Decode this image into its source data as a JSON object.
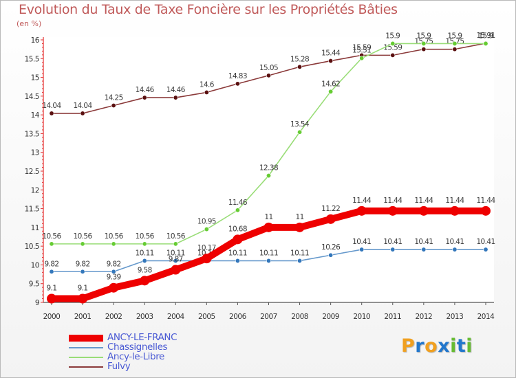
{
  "title": "Evolution du Taux de Taxe Foncière sur les Propriétés Bâties",
  "subtitle": "(en %)",
  "chart_data": {
    "type": "line",
    "title": "Evolution du Taux de Taxe Foncière sur les Propriétés Bâties",
    "ylabel": "(en %)",
    "xlabel": "",
    "ylim": [
      9,
      16
    ],
    "grid": false,
    "legend_position": "bottom-left",
    "x": [
      2000,
      2001,
      2002,
      2003,
      2004,
      2005,
      2006,
      2007,
      2008,
      2009,
      2010,
      2011,
      2012,
      2013,
      2014
    ],
    "x_ticks": [
      "2000",
      "2001",
      "2002",
      "2003",
      "2004",
      "2005",
      "2006",
      "2007",
      "2008",
      "2009",
      "2010",
      "2011",
      "2012",
      "2013",
      "2014"
    ],
    "y_ticks": [
      "9",
      "9.5",
      "10",
      "10.5",
      "11",
      "11.5",
      "12",
      "12.5",
      "13",
      "13.5",
      "14",
      "14.5",
      "15",
      "15.5",
      "16"
    ],
    "y_tick_values": [
      9,
      9.5,
      10,
      10.5,
      11,
      11.5,
      12,
      12.5,
      13,
      13.5,
      14,
      14.5,
      15,
      15.5,
      16
    ],
    "series": [
      {
        "name": "Fulvy",
        "color": "#8b3a3a",
        "marker_color": "#5a1010",
        "values": [
          14.04,
          14.04,
          14.25,
          14.46,
          14.46,
          14.6,
          14.83,
          15.05,
          15.28,
          15.44,
          15.59,
          15.59,
          15.75,
          15.75,
          15.91
        ],
        "labels": [
          "14.04",
          "14.04",
          "14.25",
          "14.46",
          "14.46",
          "14.6",
          "14.83",
          "15.05",
          "15.28",
          "15.44",
          "15.59",
          "15.59",
          "15.75",
          "15.75",
          "15.91"
        ]
      },
      {
        "name": "Ancy-le-Libre",
        "color": "#99dd77",
        "marker_color": "#66cc33",
        "values": [
          10.56,
          10.56,
          10.56,
          10.56,
          10.56,
          10.95,
          11.46,
          12.38,
          13.54,
          14.62,
          15.51,
          15.9,
          15.9,
          15.9,
          15.9
        ],
        "labels": [
          "10.56",
          "10.56",
          "10.56",
          "10.56",
          "10.56",
          "10.95",
          "11.46",
          "12.38",
          "13.54",
          "14.62",
          "15.51",
          "15.9",
          "15.9",
          "15.9",
          "15.9"
        ]
      },
      {
        "name": "Chassignelles",
        "color": "#6699cc",
        "marker_color": "#3377bb",
        "values": [
          9.82,
          9.82,
          9.82,
          10.11,
          10.11,
          10.11,
          10.11,
          10.11,
          10.11,
          10.26,
          10.41,
          10.41,
          10.41,
          10.41,
          10.41
        ],
        "labels": [
          "9.82",
          "9.82",
          "9.82",
          "10.11",
          "10.11",
          "10.11",
          "10.11",
          "10.11",
          "10.11",
          "10.26",
          "10.41",
          "10.41",
          "10.41",
          "10.41",
          "10.41"
        ]
      },
      {
        "name": "ANCY-LE-FRANC",
        "color": "#ee0000",
        "marker_color": "#ee0000",
        "values": [
          9.1,
          9.1,
          9.39,
          9.58,
          9.87,
          10.17,
          10.68,
          11,
          11,
          11.22,
          11.44,
          11.44,
          11.44,
          11.44,
          11.44
        ],
        "labels": [
          "9.1",
          "9.1",
          "9.39",
          "9.58",
          "9.87",
          "10.17",
          "10.68",
          "11",
          "11",
          "11.22",
          "11.44",
          "11.44",
          "11.44",
          "11.44",
          "11.44"
        ]
      }
    ]
  },
  "legend": [
    {
      "label": "ANCY-LE-FRANC",
      "color": "#ee0000"
    },
    {
      "label": "Chassignelles",
      "color": "#6699cc"
    },
    {
      "label": "Ancy-le-Libre",
      "color": "#99dd77"
    },
    {
      "label": "Fulvy",
      "color": "#8b3a3a"
    }
  ],
  "logo": {
    "letters": [
      "P",
      "r",
      "o",
      "x",
      "i",
      "t",
      "i"
    ],
    "colors": [
      "#f0a020",
      "#2277cc",
      "#f0a020",
      "#2277cc",
      "#66bb33",
      "#2277cc",
      "#66bb33"
    ]
  }
}
